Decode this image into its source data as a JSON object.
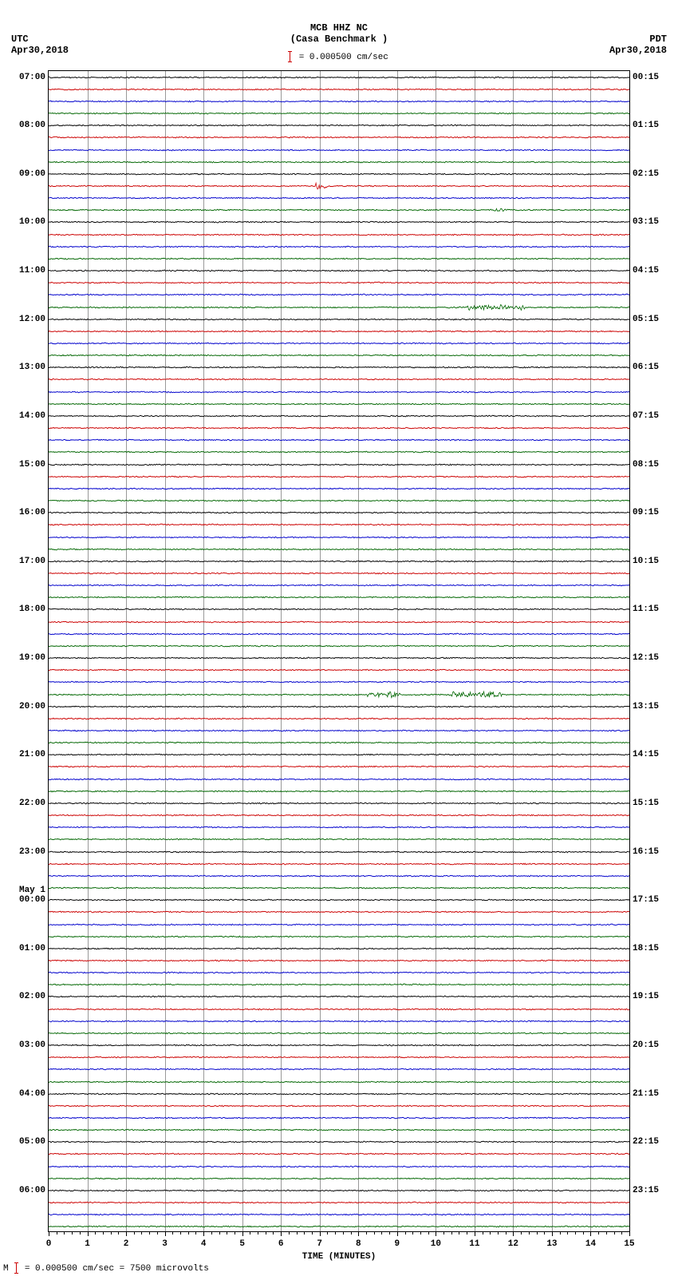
{
  "title_line1": "MCB HHZ NC",
  "title_line2": "(Casa Benchmark )",
  "scale_text": "= 0.000500 cm/sec",
  "tz_left_label": "UTC",
  "tz_left_date": "Apr30,2018",
  "tz_right_label": "PDT",
  "tz_right_date": "Apr30,2018",
  "x_axis_title": "TIME (MINUTES)",
  "footer_prefix": "M",
  "footer_text": "= 0.000500 cm/sec =   7500 microvolts",
  "plot": {
    "colors": [
      "#000000",
      "#cc0000",
      "#0000cc",
      "#006600"
    ],
    "grid_color": "#999999",
    "xlim": [
      0,
      15
    ],
    "xtick_major_step": 1,
    "xtick_minor_per_major": 4,
    "num_traces": 96,
    "line_width": 1,
    "base_amplitude": 1.2,
    "noise_freq": 170,
    "left_hour_start": 7,
    "right_time_start_h": 0,
    "right_time_start_m": 15,
    "left_label_every": 4,
    "right_label_every": 4,
    "day_break_index": 68,
    "day_break_label": "May 1",
    "events": [
      {
        "trace": 9,
        "x": 6.9,
        "width": 0.3,
        "amp": 6
      },
      {
        "trace": 11,
        "x": 11.4,
        "width": 0.4,
        "amp": 4
      },
      {
        "trace": 19,
        "x": 10.8,
        "width": 1.5,
        "amp": 5
      },
      {
        "trace": 51,
        "x": 8.2,
        "width": 0.9,
        "amp": 6
      },
      {
        "trace": 51,
        "x": 10.4,
        "width": 1.3,
        "amp": 6
      }
    ]
  }
}
